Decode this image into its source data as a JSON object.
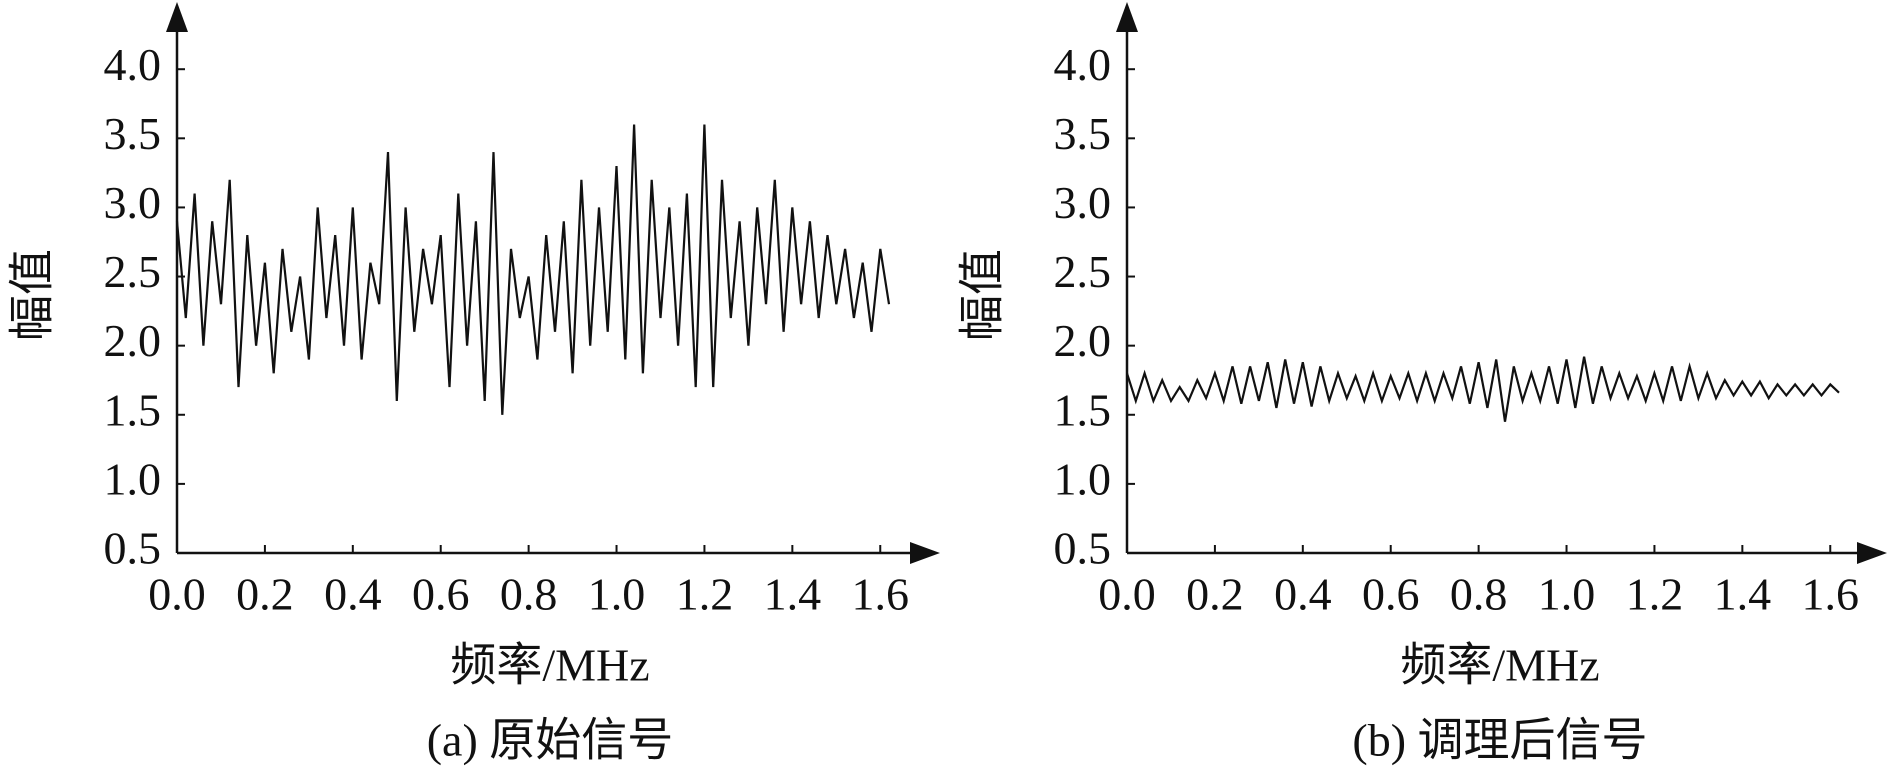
{
  "chart_data": [
    {
      "type": "line",
      "caption": "(a) 原始信号",
      "xlabel": "频率/MHz",
      "ylabel": "幅值",
      "color": "#111111",
      "xlim": [
        0,
        1.72
      ],
      "ylim": [
        0.5,
        4.45
      ],
      "xticks": [
        {
          "value": 0,
          "label": "0.0"
        },
        0.2,
        0.4,
        0.6,
        0.8,
        {
          "value": 1,
          "label": "1.0"
        },
        1.2,
        1.4,
        1.6
      ],
      "yticks": [
        0.5,
        {
          "value": 1,
          "label": "1.0"
        },
        1.5,
        {
          "value": 2,
          "label": "2.0"
        },
        2.5,
        {
          "value": 3,
          "label": "3.0"
        },
        3.5,
        {
          "value": 4,
          "label": "4.0"
        }
      ],
      "x": [
        0,
        0.02,
        0.04,
        0.06,
        0.08,
        0.1,
        0.12,
        0.14,
        0.16,
        0.18,
        0.2,
        0.22,
        0.24,
        0.26,
        0.28,
        0.3,
        0.32,
        0.34,
        0.36,
        0.38,
        0.4,
        0.42,
        0.44,
        0.46,
        0.48,
        0.5,
        0.52,
        0.54,
        0.56,
        0.58,
        0.6,
        0.62,
        0.64,
        0.66,
        0.68,
        0.7,
        0.72,
        0.74,
        0.76,
        0.78,
        0.8,
        0.82,
        0.84,
        0.86,
        0.88,
        0.9,
        0.92,
        0.94,
        0.96,
        0.98,
        1.0,
        1.02,
        1.04,
        1.06,
        1.08,
        1.1,
        1.12,
        1.14,
        1.16,
        1.18,
        1.2,
        1.22,
        1.24,
        1.26,
        1.28,
        1.3,
        1.32,
        1.34,
        1.36,
        1.38,
        1.4,
        1.42,
        1.44,
        1.46,
        1.48,
        1.5,
        1.52,
        1.54,
        1.56,
        1.58,
        1.6,
        1.62
      ],
      "values": [
        2.9,
        2.2,
        3.1,
        2.0,
        2.9,
        2.3,
        3.2,
        1.7,
        2.8,
        2.0,
        2.6,
        1.8,
        2.7,
        2.1,
        2.5,
        1.9,
        3.0,
        2.2,
        2.8,
        2.0,
        3.0,
        1.9,
        2.6,
        2.3,
        3.4,
        1.6,
        3.0,
        2.1,
        2.7,
        2.3,
        2.8,
        1.7,
        3.1,
        2.0,
        2.9,
        1.6,
        3.4,
        1.5,
        2.7,
        2.2,
        2.5,
        1.9,
        2.8,
        2.1,
        2.9,
        1.8,
        3.2,
        2.0,
        3.0,
        2.1,
        3.3,
        1.9,
        3.6,
        1.8,
        3.2,
        2.2,
        3.0,
        2.0,
        3.1,
        1.7,
        3.6,
        1.7,
        3.2,
        2.2,
        2.9,
        2.0,
        3.0,
        2.3,
        3.2,
        2.1,
        3.0,
        2.3,
        2.9,
        2.2,
        2.8,
        2.3,
        2.7,
        2.2,
        2.6,
        2.1,
        2.7,
        2.3
      ]
    },
    {
      "type": "line",
      "caption": "(b) 调理后信号",
      "xlabel": "频率/MHz",
      "ylabel": "幅值",
      "color": "#111111",
      "xlim": [
        0,
        1.72
      ],
      "ylim": [
        0.5,
        4.45
      ],
      "xticks": [
        {
          "value": 0,
          "label": "0.0"
        },
        0.2,
        0.4,
        0.6,
        0.8,
        {
          "value": 1,
          "label": "1.0"
        },
        1.2,
        1.4,
        1.6
      ],
      "yticks": [
        0.5,
        {
          "value": 1,
          "label": "1.0"
        },
        1.5,
        {
          "value": 2,
          "label": "2.0"
        },
        2.5,
        {
          "value": 3,
          "label": "3.0"
        },
        3.5,
        {
          "value": 4,
          "label": "4.0"
        }
      ],
      "x": [
        0,
        0.02,
        0.04,
        0.06,
        0.08,
        0.1,
        0.12,
        0.14,
        0.16,
        0.18,
        0.2,
        0.22,
        0.24,
        0.26,
        0.28,
        0.3,
        0.32,
        0.34,
        0.36,
        0.38,
        0.4,
        0.42,
        0.44,
        0.46,
        0.48,
        0.5,
        0.52,
        0.54,
        0.56,
        0.58,
        0.6,
        0.62,
        0.64,
        0.66,
        0.68,
        0.7,
        0.72,
        0.74,
        0.76,
        0.78,
        0.8,
        0.82,
        0.84,
        0.86,
        0.88,
        0.9,
        0.92,
        0.94,
        0.96,
        0.98,
        1.0,
        1.02,
        1.04,
        1.06,
        1.08,
        1.1,
        1.12,
        1.14,
        1.16,
        1.18,
        1.2,
        1.22,
        1.24,
        1.26,
        1.28,
        1.3,
        1.32,
        1.34,
        1.36,
        1.38,
        1.4,
        1.42,
        1.44,
        1.46,
        1.48,
        1.5,
        1.52,
        1.54,
        1.56,
        1.58,
        1.6,
        1.62
      ],
      "values": [
        1.8,
        1.6,
        1.8,
        1.6,
        1.75,
        1.6,
        1.7,
        1.6,
        1.75,
        1.62,
        1.8,
        1.6,
        1.85,
        1.58,
        1.85,
        1.6,
        1.88,
        1.55,
        1.9,
        1.58,
        1.88,
        1.56,
        1.85,
        1.6,
        1.8,
        1.62,
        1.78,
        1.6,
        1.8,
        1.6,
        1.78,
        1.62,
        1.8,
        1.6,
        1.8,
        1.6,
        1.8,
        1.62,
        1.85,
        1.58,
        1.88,
        1.55,
        1.9,
        1.45,
        1.85,
        1.6,
        1.8,
        1.6,
        1.85,
        1.58,
        1.9,
        1.55,
        1.92,
        1.58,
        1.85,
        1.62,
        1.8,
        1.62,
        1.78,
        1.6,
        1.8,
        1.6,
        1.85,
        1.6,
        1.85,
        1.62,
        1.8,
        1.62,
        1.75,
        1.64,
        1.74,
        1.64,
        1.74,
        1.62,
        1.72,
        1.64,
        1.72,
        1.64,
        1.72,
        1.64,
        1.72,
        1.66
      ]
    }
  ]
}
